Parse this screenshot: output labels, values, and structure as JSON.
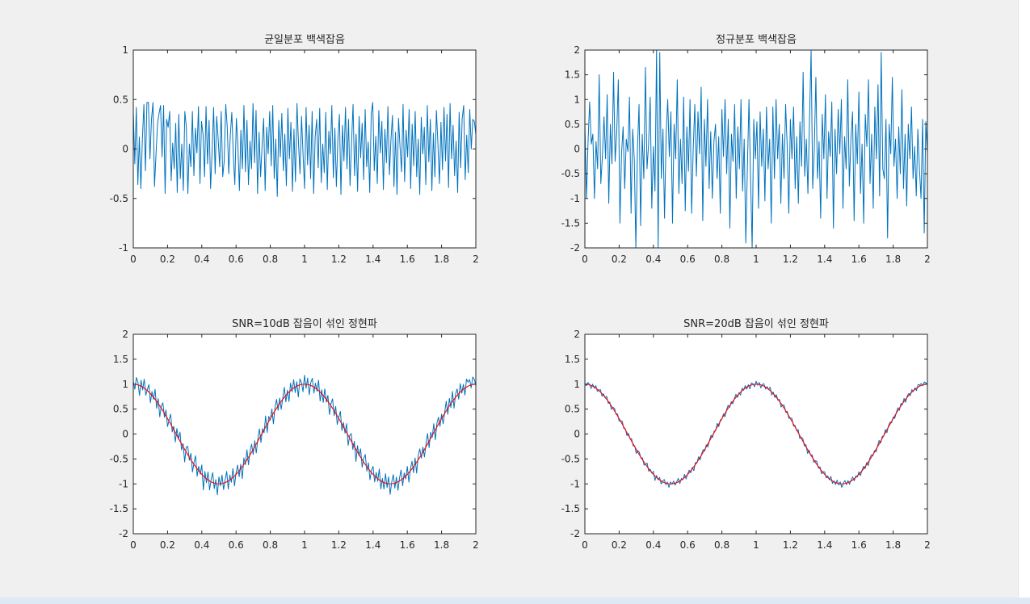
{
  "colors": {
    "signal": "#0072BD",
    "reference": "#FF0000",
    "axis": "#262626",
    "figure_bg": "#f0f0f0"
  },
  "chart_data": [
    {
      "type": "line",
      "title": "균일분포 백색잡음",
      "xlim": [
        0,
        2
      ],
      "ylim": [
        -1,
        1
      ],
      "xticks": [
        "0",
        "0.2",
        "0.4",
        "0.6",
        "0.8",
        "1",
        "1.2",
        "1.4",
        "1.6",
        "1.8",
        "2"
      ],
      "yticks": [
        "-1",
        "-0.5",
        "0",
        "0.5",
        "1"
      ],
      "grid": false,
      "series": [
        {
          "kind": "noise",
          "values": [
            0.38,
            -0.15,
            0.42,
            -0.36,
            0.12,
            -0.4,
            0.1,
            0.45,
            -0.22,
            0.47,
            0.47,
            -0.1,
            0.3,
            0.47,
            -0.38,
            -0.05,
            0.26,
            0.36,
            0.44,
            -0.08,
            0.44,
            -0.45,
            0.3,
            0.22,
            0.38,
            -0.32,
            0.06,
            -0.2,
            0.26,
            -0.44,
            0.35,
            -0.3,
            0.05,
            -0.42,
            0.38,
            0.22,
            -0.45,
            0.05,
            -0.18,
            0.38,
            -0.27,
            0.21,
            -0.04,
            0.43,
            -0.35,
            0.28,
            0.15,
            -0.28,
            0.43,
            -0.15,
            0.29,
            -0.4,
            -0.02,
            0.42,
            -0.25,
            0.33,
            0.1,
            -0.18,
            0.38,
            -0.28,
            -0.12,
            0.45,
            0.22,
            -0.25,
            0.14,
            0.37,
            -0.07,
            -0.36,
            0.31,
            0.04,
            -0.42,
            0.19,
            -0.2,
            0.44,
            -0.23,
            0.29,
            -0.36,
            0.08,
            -0.2,
            0.46,
            -0.14,
            0.39,
            -0.45,
            0.17,
            -0.28,
            0.04,
            0.31,
            -0.42,
            0.22,
            -0.05,
            0.38,
            -0.17,
            0.44,
            -0.3,
            0.1,
            -0.48,
            0.29,
            -0.08,
            0.36,
            -0.22,
            0.15,
            -0.37,
            0.41,
            -0.1,
            0.27,
            -0.43,
            0.2,
            -0.33,
            0.46,
            0.06,
            -0.25,
            0.33,
            -0.05,
            -0.4,
            0.42,
            -0.16,
            0.24,
            -0.3,
            0.38,
            -0.45,
            0.12,
            0.3,
            -0.19,
            0.41,
            -0.34,
            0.05,
            -0.24,
            0.37,
            -0.41,
            0.18,
            -0.05,
            0.44,
            -0.29,
            0.21,
            -0.38,
            0.1,
            0.35,
            -0.46,
            0.24,
            -0.12,
            0.42,
            -0.2,
            0.3,
            -0.37,
            0.06,
            0.45,
            -0.27,
            0.15,
            -0.43,
            0.33,
            -0.09,
            0.26,
            -0.31,
            0.4,
            -0.18,
            0.07,
            -0.44,
            0.36,
            0.47,
            -0.22,
            0.13,
            -0.35,
            0.39,
            -0.04,
            0.28,
            -0.41,
            0.2,
            -0.14,
            0.43,
            -0.26,
            0.09,
            0.34,
            -0.38,
            0.17,
            -0.46,
            0.31,
            0.02,
            -0.23,
            0.45,
            -0.33,
            0.19,
            -0.08,
            0.4,
            -0.4,
            0.25,
            -0.17,
            0.38,
            -0.28,
            0.1,
            -0.46,
            0.32,
            -0.05,
            0.22,
            -0.36,
            0.44,
            -0.13,
            0.3,
            -0.42,
            0.16,
            -0.28,
            0.39,
            0.05,
            -0.35,
            0.27,
            -0.21,
            0.42,
            -0.12,
            0.35,
            -0.39,
            0.46,
            -0.1,
            0.24,
            -0.27,
            0.08,
            -0.44,
            0.37,
            -0.19,
            0.31,
            0.44,
            -0.31,
            0.14,
            -0.24,
            0.4,
            0.0,
            0.3,
            0.28,
            0.15
          ]
        }
      ]
    },
    {
      "type": "line",
      "title": "정규분포 백색잡음",
      "xlim": [
        0,
        2
      ],
      "ylim": [
        -2,
        2
      ],
      "xticks": [
        "0",
        "0.2",
        "0.4",
        "0.6",
        "0.8",
        "1",
        "1.2",
        "1.4",
        "1.6",
        "1.8",
        "2"
      ],
      "yticks": [
        "-2",
        "-1.5",
        "-1",
        "-0.5",
        "0",
        "0.5",
        "1",
        "1.5",
        "2"
      ],
      "grid": false,
      "series": [
        {
          "kind": "noise",
          "values": [
            0.55,
            -1.0,
            0.15,
            0.95,
            0.1,
            0.3,
            -1.0,
            0.15,
            -0.4,
            1.5,
            -0.7,
            -0.15,
            0.65,
            -0.2,
            1.1,
            -1.1,
            0.5,
            -0.3,
            1.55,
            -0.25,
            0.35,
            1.4,
            -1.5,
            -0.1,
            0.45,
            -0.8,
            0.2,
            -0.05,
            1.05,
            -1.3,
            0.4,
            -0.2,
            -2.0,
            0.0,
            0.9,
            -1.55,
            0.3,
            -0.6,
            1.65,
            -0.4,
            0.1,
            1.05,
            -1.2,
            0.05,
            -0.85,
            2.0,
            -2.0,
            1.95,
            -0.6,
            0.4,
            -1.4,
            0.3,
            1.0,
            -0.15,
            0.75,
            -1.5,
            0.5,
            -0.2,
            1.4,
            -0.9,
            0.2,
            -0.7,
            1.05,
            -1.25,
            0.45,
            -0.45,
            1.0,
            -1.3,
            0.0,
            0.9,
            -0.55,
            0.75,
            -0.1,
            1.25,
            -1.45,
            0.6,
            -0.35,
            1.0,
            -0.8,
            0.35,
            -1.0,
            0.15,
            0.5,
            -0.6,
            0.25,
            -1.3,
            0.8,
            -0.15,
            1.0,
            -0.5,
            0.6,
            -1.6,
            0.3,
            -0.25,
            0.9,
            -1.0,
            0.45,
            -0.4,
            1.0,
            -0.85,
            0.2,
            -1.9,
            -0.4,
            1.0,
            -0.6,
            -2.0,
            0.6,
            -0.2,
            0.55,
            -1.2,
            0.75,
            -0.35,
            0.4,
            -1.05,
            0.85,
            -0.4,
            0.2,
            -1.5,
            0.85,
            -0.6,
            1.0,
            -0.2,
            0.5,
            -1.1,
            0.3,
            -0.6,
            0.9,
            0.05,
            -1.3,
            0.6,
            -0.2,
            0.85,
            -0.8,
            0.25,
            -1.1,
            0.55,
            -0.35,
            1.55,
            -0.55,
            0.2,
            -0.9,
            0.6,
            2.0,
            -0.8,
            0.0,
            1.45,
            -0.6,
            0.15,
            -1.4,
            0.7,
            -0.2,
            1.1,
            -1.0,
            0.35,
            -0.15,
            0.95,
            -1.6,
            0.4,
            -0.5,
            0.8,
            -0.1,
            1.0,
            -1.2,
            0.25,
            -0.4,
            1.4,
            -0.75,
            0.2,
            0.75,
            -1.45,
            0.5,
            -0.3,
            1.15,
            -0.9,
            0.1,
            -1.5,
            0.7,
            0.05,
            1.4,
            -0.7,
            0.3,
            -1.2,
            0.85,
            -0.2,
            1.3,
            -0.95,
            1.95,
            -0.4,
            -0.6,
            0.6,
            -1.8,
            0.5,
            -0.1,
            1.45,
            -0.35,
            0.2,
            -1.0,
            0.45,
            -0.5,
            1.2,
            -0.8,
            0.3,
            -1.15,
            0.5,
            -0.2,
            0.85,
            -0.6,
            0.05,
            -0.95,
            0.4,
            -0.4,
            -1.0,
            0.6,
            -1.7,
            0.55,
            -0.1
          ]
        }
      ]
    },
    {
      "type": "line",
      "title": "SNR=10dB 잡음이 섞인 정현파",
      "xlim": [
        0,
        2
      ],
      "ylim": [
        -2,
        2
      ],
      "xticks": [
        "0",
        "0.2",
        "0.4",
        "0.6",
        "0.8",
        "1",
        "1.2",
        "1.4",
        "1.6",
        "1.8",
        "2"
      ],
      "yticks": [
        "-2",
        "-1.5",
        "-1",
        "-0.5",
        "0",
        "0.5",
        "1",
        "1.5",
        "2"
      ],
      "grid": false,
      "series": [
        {
          "kind": "noisy",
          "noise": [
            0.06,
            -0.1,
            0.14,
            0.05,
            -0.2,
            0.12,
            -0.06,
            0.18,
            -0.12,
            0.02,
            0.15,
            -0.18,
            0.08,
            -0.04,
            0.2,
            -0.14,
            0.1,
            -0.22,
            0.05,
            0.16,
            -0.08,
            0.12,
            -0.16,
            0.03,
            0.2,
            -0.1,
            0.07,
            -0.19,
            0.14,
            -0.02,
            0.18,
            -0.12,
            0.06,
            -0.25,
            0.1,
            0.17,
            -0.06,
            0.13,
            -0.2,
            0.04,
            0.22,
            -0.15,
            0.09,
            -0.03,
            0.19,
            -0.28,
            0.12,
            -0.08,
            0.16,
            -0.18,
            0.05,
            0.2,
            -0.11,
            0.08,
            -0.22,
            0.14,
            -0.04,
            0.17,
            -0.13,
            0.06,
            0.21,
            -0.16,
            0.1,
            -0.07,
            0.18,
            -0.2,
            0.03,
            0.15,
            -0.12,
            0.09,
            -0.24,
            0.13,
            -0.05,
            0.2,
            -0.15,
            0.07,
            0.16,
            -0.1,
            0.12,
            -0.18,
            0.04,
            0.19,
            -0.14,
            0.08,
            -0.06,
            0.22,
            -0.17,
            0.1,
            -0.03,
            0.14,
            -0.21,
            0.06,
            0.18,
            -0.09,
            0.11,
            -0.16,
            0.02,
            0.2,
            -0.13,
            0.07,
            -0.19,
            0.15,
            -0.05,
            0.17,
            -0.11,
            0.09,
            -0.23,
            0.12,
            0.04,
            -0.15,
            0.18,
            -0.08,
            0.13,
            -0.2,
            0.06,
            0.16,
            -0.12,
            0.1,
            -0.04,
            0.21,
            -0.18,
            0.08,
            -0.14,
            0.17,
            -0.06,
            0.12,
            -0.22,
            0.05,
            0.19,
            -0.1,
            0.14,
            -0.17,
            0.03,
            0.2,
            -0.13,
            0.09,
            -0.07,
            0.18,
            -0.2,
            0.06,
            0.15,
            -0.11,
            0.11,
            -0.24,
            0.13,
            -0.02,
            0.17,
            -0.15,
            0.08,
            0.2,
            -0.09,
            0.12,
            -0.18,
            0.05,
            0.16,
            -0.12,
            0.1,
            -0.05,
            0.22,
            -0.16,
            0.07,
            -0.13,
            0.19,
            -0.08,
            0.14,
            -0.21,
            0.04,
            0.18,
            -0.1,
            0.11,
            -0.17,
            0.06,
            0.2,
            -0.14,
            0.09,
            -0.06,
            0.16,
            -0.19,
            0.03,
            0.15,
            -0.12,
            0.13,
            -0.22,
            0.08,
            0.17,
            -0.07,
            0.1,
            -0.15,
            0.05,
            0.21,
            -0.13,
            0.12,
            -0.04,
            0.18,
            -0.2,
            0.07,
            0.14,
            -0.1,
            0.09,
            -0.16,
            0.02,
            0.19,
            -0.12,
            0.15,
            -0.08,
            0.2,
            -0.18,
            0.06,
            0.13,
            -0.11,
            0.17,
            -0.05,
            0.1,
            -0.14,
            0.16,
            0.08,
            0.12,
            -0.06,
            0.15,
            0.1,
            -0.03
          ]
        },
        {
          "kind": "reference",
          "values": [
            1,
            0.81,
            0.31,
            -0.31,
            -0.81,
            -1,
            -0.81,
            -0.31,
            0.31,
            0.81,
            1,
            0.81,
            0.31,
            -0.31,
            -0.81,
            -1,
            -0.81,
            -0.31,
            0.31,
            0.81,
            1
          ]
        }
      ]
    },
    {
      "type": "line",
      "title": "SNR=20dB 잡음이 섞인 정현파",
      "xlim": [
        0,
        2
      ],
      "ylim": [
        -2,
        2
      ],
      "xticks": [
        "0",
        "0.2",
        "0.4",
        "0.6",
        "0.8",
        "1",
        "1.2",
        "1.4",
        "1.6",
        "1.8",
        "2"
      ],
      "yticks": [
        "-2",
        "-1.5",
        "-1",
        "-0.5",
        "0",
        "0.5",
        "1",
        "1.5",
        "2"
      ],
      "grid": false,
      "series": [
        {
          "kind": "noisy",
          "noise": [
            0.02,
            -0.03,
            0.04,
            0.01,
            -0.06,
            0.04,
            -0.02,
            0.05,
            -0.04,
            0.01,
            0.05,
            -0.05,
            0.03,
            -0.01,
            0.06,
            -0.04,
            0.03,
            -0.07,
            0.02,
            0.05,
            -0.02,
            0.04,
            -0.05,
            0.01,
            0.06,
            -0.03,
            0.02,
            -0.06,
            0.04,
            -0.01,
            0.05,
            -0.04,
            0.02,
            -0.08,
            0.03,
            0.05,
            -0.02,
            0.04,
            -0.06,
            0.01,
            0.07,
            -0.05,
            0.03,
            -0.01,
            0.06,
            -0.09,
            0.04,
            -0.02,
            0.05,
            -0.06,
            0.02,
            0.06,
            -0.03,
            0.03,
            -0.07,
            0.04,
            -0.01,
            0.05,
            -0.04,
            0.02,
            0.07,
            -0.05,
            0.03,
            -0.02,
            0.06,
            -0.06,
            0.01,
            0.05,
            -0.04,
            0.03,
            -0.08,
            0.04,
            -0.02,
            0.06,
            -0.05,
            0.02,
            0.05,
            -0.03,
            0.04,
            -0.06,
            0.01,
            0.06,
            -0.04,
            0.03,
            -0.02,
            0.07,
            -0.05,
            0.03,
            -0.01,
            0.04,
            -0.07,
            0.02,
            0.06,
            -0.03,
            0.04,
            -0.05,
            0.01,
            0.06,
            -0.04,
            0.02,
            -0.06,
            0.05,
            -0.02,
            0.05,
            -0.04,
            0.03,
            -0.07,
            0.04,
            0.01,
            -0.05,
            0.06,
            -0.02,
            0.04,
            -0.06,
            0.02,
            0.05,
            -0.04,
            0.03,
            -0.01,
            0.07,
            -0.06,
            0.03,
            -0.04,
            0.05,
            -0.02,
            0.04,
            -0.07,
            0.02,
            0.06,
            -0.03,
            0.04,
            -0.05,
            0.01,
            0.06,
            -0.04,
            0.03,
            -0.02,
            0.06,
            -0.06,
            0.02,
            0.05,
            -0.04,
            0.04,
            -0.08,
            0.04,
            -0.01,
            0.05,
            -0.05,
            0.03,
            0.06,
            -0.03,
            0.04,
            -0.06,
            0.02,
            0.05,
            -0.04,
            0.03,
            -0.02,
            0.07,
            -0.05,
            0.02,
            -0.04,
            0.06,
            -0.03,
            0.04,
            -0.07,
            0.01,
            0.06,
            -0.03,
            0.04,
            -0.05,
            0.02,
            0.06,
            -0.04,
            0.03,
            -0.02,
            0.05,
            -0.06,
            0.01,
            0.05,
            -0.04,
            0.04,
            -0.07,
            0.03,
            0.05,
            -0.02,
            0.03,
            -0.05,
            0.02,
            0.07,
            -0.04,
            0.04,
            -0.01,
            0.06,
            -0.06,
            0.02,
            0.04,
            -0.03,
            0.03,
            -0.05,
            0.01,
            0.06,
            -0.04,
            0.05,
            -0.02,
            0.06,
            -0.06,
            0.02,
            0.04,
            -0.04,
            0.05,
            -0.02,
            0.03,
            -0.05,
            0.05,
            0.02,
            0.04,
            -0.02,
            0.05,
            0.03,
            -0.01
          ]
        },
        {
          "kind": "reference",
          "values": [
            1,
            0.81,
            0.31,
            -0.31,
            -0.81,
            -1,
            -0.81,
            -0.31,
            0.31,
            0.81,
            1,
            0.81,
            0.31,
            -0.31,
            -0.81,
            -1,
            -0.81,
            -0.31,
            0.31,
            0.81,
            1
          ]
        }
      ]
    }
  ]
}
